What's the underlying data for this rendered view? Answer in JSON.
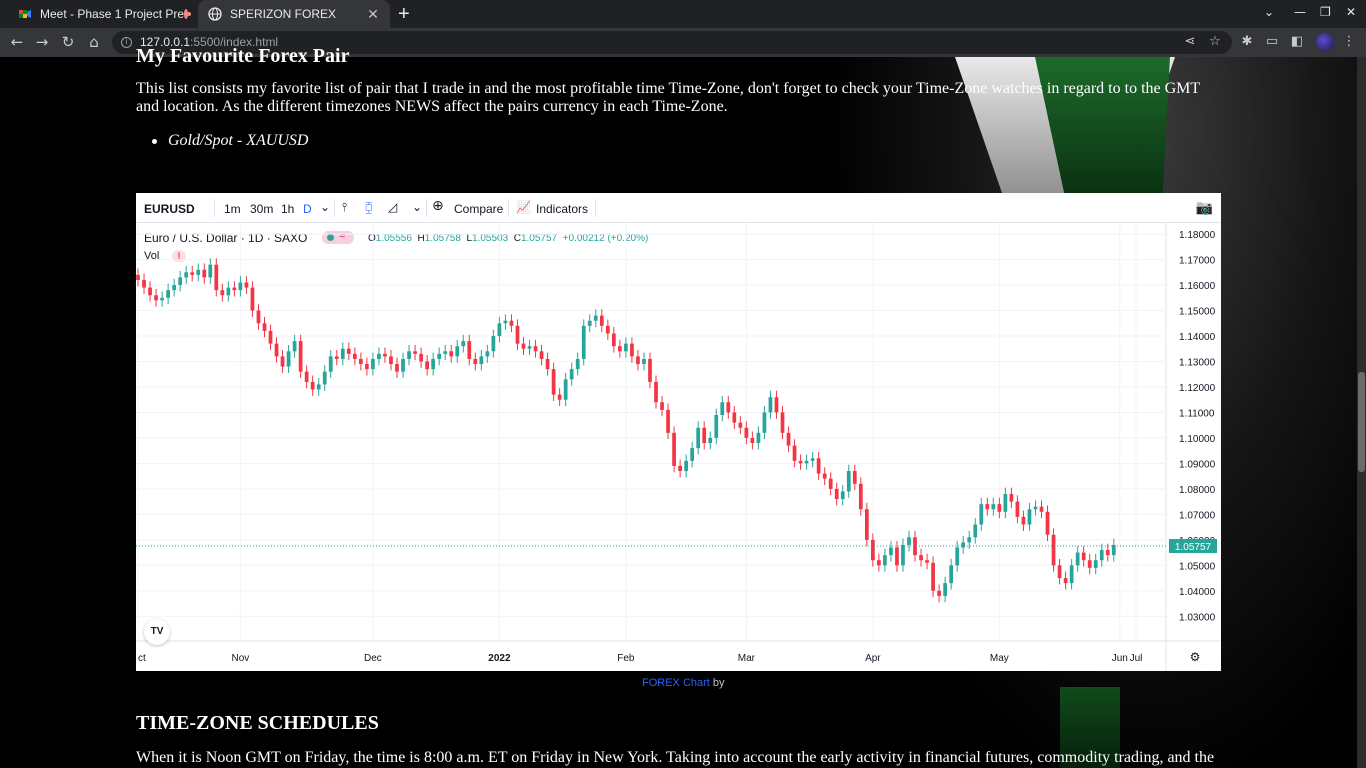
{
  "browser": {
    "tabs": [
      {
        "title": "Meet - Phase 1 Project Pre",
        "active": false,
        "recording": true
      },
      {
        "title": "SPERIZON FOREX",
        "active": true
      }
    ],
    "new_tab": "+",
    "url_host": "127.0.0.1",
    "url_rest": ":5500/index.html",
    "window_controls": [
      "⌄",
      "—",
      "❐",
      "✕"
    ]
  },
  "page": {
    "heading_cut": "My Favourite Forex Pair",
    "intro": "This list consists my favorite list of pair that I trade in and the most profitable time Time-Zone, don't forget to check your Time-Zone watches in regard to to the GMT and location. As the different timezones NEWS affect the pairs currency in each Time-Zone.",
    "pairs": [
      "Gold/Spot - XAUUSD"
    ],
    "credit_link": "FOREX Chart",
    "credit_by": " by",
    "tz_title": "TIME-ZONE SCHEDULES",
    "tz_text": "When it is Noon GMT on Friday, the time is 8:00 a.m. ET on Friday in New York. Taking into account the early activity in financial futures, commodity trading, and the"
  },
  "widget": {
    "symbol": "EURUSD",
    "intervals": [
      "1m",
      "30m",
      "1h",
      "D"
    ],
    "active_interval": "D",
    "compare": "Compare",
    "indicators": "Indicators",
    "legend_name": "Euro / U.S. Dollar · 1D · SAXO",
    "ohlc": {
      "o": "1.05556",
      "h": "1.05758",
      "l": "1.05503",
      "c": "1.05757",
      "chg": "+0.00212 (+0.20%)"
    },
    "vol": "Vol",
    "logo": "TV",
    "colors": {
      "up": "#26a69a",
      "down": "#f23645",
      "accent": "#2962ff"
    }
  },
  "chart_data": {
    "type": "candlestick",
    "title": "Euro / U.S. Dollar · 1D · SAXO",
    "ylim": [
      1.025,
      1.182
    ],
    "y_ticks": [
      "1.18000",
      "1.17000",
      "1.16000",
      "1.15000",
      "1.14000",
      "1.13000",
      "1.12000",
      "1.11000",
      "1.10000",
      "1.09000",
      "1.08000",
      "1.07000",
      "1.06000",
      "1.05000",
      "1.04000",
      "1.03000"
    ],
    "x_ticks": [
      "ct",
      "Nov",
      "Dec",
      "2022",
      "Feb",
      "Mar",
      "Apr",
      "May",
      "Jun",
      "Jul"
    ],
    "last_price": "1.05757",
    "closes": [
      1.162,
      1.159,
      1.156,
      1.154,
      1.155,
      1.158,
      1.16,
      1.163,
      1.165,
      1.164,
      1.166,
      1.163,
      1.168,
      1.158,
      1.156,
      1.159,
      1.158,
      1.161,
      1.159,
      1.15,
      1.145,
      1.142,
      1.137,
      1.132,
      1.128,
      1.134,
      1.138,
      1.126,
      1.122,
      1.119,
      1.121,
      1.126,
      1.132,
      1.131,
      1.135,
      1.133,
      1.131,
      1.129,
      1.127,
      1.131,
      1.133,
      1.132,
      1.129,
      1.126,
      1.131,
      1.134,
      1.133,
      1.13,
      1.127,
      1.131,
      1.133,
      1.134,
      1.132,
      1.136,
      1.138,
      1.131,
      1.129,
      1.132,
      1.134,
      1.14,
      1.145,
      1.146,
      1.144,
      1.137,
      1.135,
      1.136,
      1.134,
      1.131,
      1.127,
      1.117,
      1.115,
      1.123,
      1.127,
      1.131,
      1.144,
      1.146,
      1.148,
      1.144,
      1.141,
      1.136,
      1.134,
      1.137,
      1.132,
      1.129,
      1.131,
      1.122,
      1.114,
      1.111,
      1.102,
      1.089,
      1.087,
      1.091,
      1.096,
      1.104,
      1.098,
      1.1,
      1.109,
      1.114,
      1.11,
      1.106,
      1.104,
      1.1,
      1.098,
      1.102,
      1.11,
      1.116,
      1.11,
      1.102,
      1.097,
      1.091,
      1.09,
      1.091,
      1.092,
      1.086,
      1.084,
      1.08,
      1.076,
      1.079,
      1.087,
      1.082,
      1.072,
      1.06,
      1.052,
      1.05,
      1.054,
      1.057,
      1.05,
      1.058,
      1.061,
      1.054,
      1.052,
      1.051,
      1.04,
      1.038,
      1.043,
      1.05,
      1.057,
      1.059,
      1.061,
      1.066,
      1.074,
      1.072,
      1.074,
      1.071,
      1.078,
      1.075,
      1.069,
      1.066,
      1.072,
      1.073,
      1.071,
      1.062,
      1.05,
      1.045,
      1.043,
      1.05,
      1.055,
      1.052,
      1.049,
      1.052,
      1.056,
      1.054,
      1.058
    ]
  }
}
